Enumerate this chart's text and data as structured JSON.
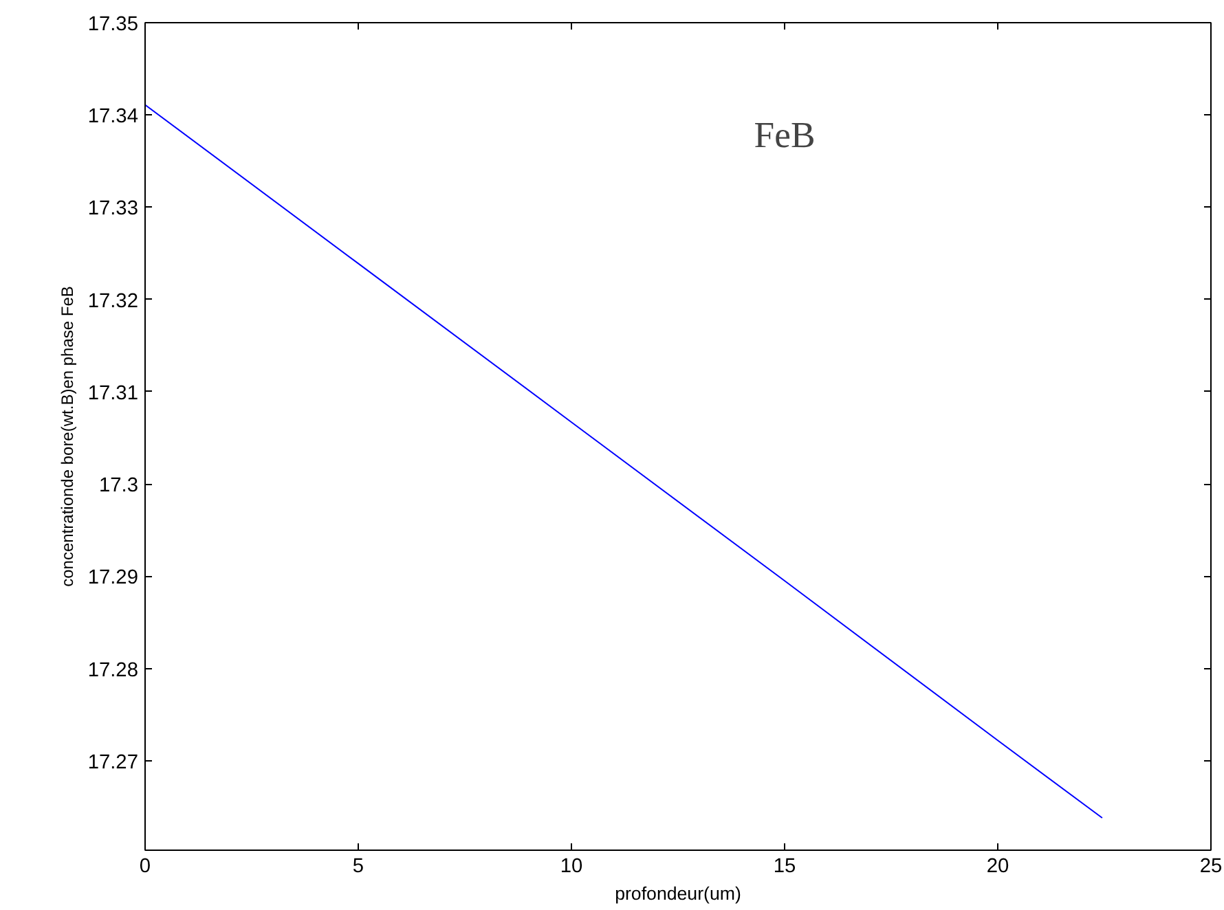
{
  "chart_data": {
    "type": "line",
    "xlabel": "profondeur(um)",
    "ylabel": "concentrationde bore(wt.B)en phase FeB",
    "annotations": [
      "FeB"
    ],
    "x": [
      0,
      5,
      10,
      15,
      20,
      22.45
    ],
    "series": [
      {
        "color": "#0000ff",
        "values": [
          17.3411,
          17.3239,
          17.3067,
          17.2895,
          17.2722,
          17.2638
        ]
      }
    ],
    "xlim": [
      0,
      25
    ],
    "xticks": [
      0,
      5,
      10,
      15,
      20,
      25
    ],
    "ylim": [
      17.2603,
      17.35
    ],
    "yticks": [
      17.27,
      17.28,
      17.29,
      {
        "value": 17.3,
        "label": "17.3"
      },
      17.31,
      17.32,
      17.33,
      17.34,
      17.35
    ],
    "grid": false,
    "marker": "none",
    "line_style": "solid"
  }
}
